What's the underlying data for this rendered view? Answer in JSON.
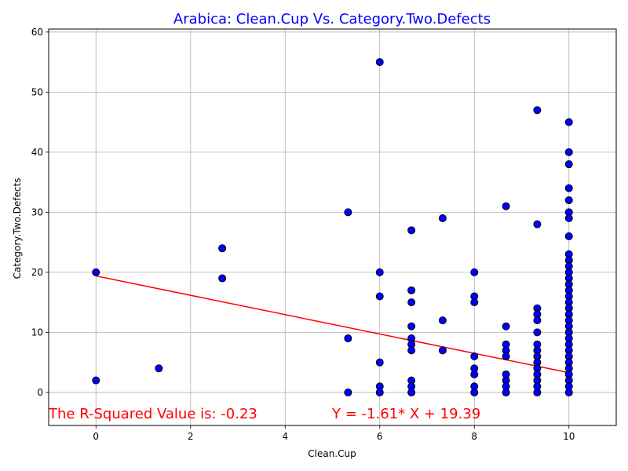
{
  "chart_data": {
    "type": "scatter",
    "title": "Arabica: Clean.Cup Vs. Category.Two.Defects",
    "xlabel": "Clean.Cup",
    "ylabel": "Category.Two.Defects",
    "xlim": [
      -1,
      11
    ],
    "ylim": [
      -5.5,
      60.5
    ],
    "xticks": [
      0,
      2,
      4,
      6,
      8,
      10
    ],
    "yticks": [
      0,
      10,
      20,
      30,
      40,
      50,
      60
    ],
    "grid": true,
    "colors": {
      "title": "#0000ff",
      "point_fill": "#0000ff",
      "point_edge": "#000000",
      "regression_line": "#ff0000",
      "annotation": "#ff0000",
      "grid": "#b0b0b0"
    },
    "series": [
      {
        "points": [
          [
            0,
            20
          ],
          [
            0,
            2
          ],
          [
            1.33,
            4
          ],
          [
            2.67,
            24
          ],
          [
            2.67,
            19
          ],
          [
            5.33,
            30
          ],
          [
            5.33,
            9
          ],
          [
            5.33,
            0
          ],
          [
            6,
            55
          ],
          [
            6,
            20
          ],
          [
            6,
            16
          ],
          [
            6,
            5
          ],
          [
            6,
            1
          ],
          [
            6,
            0
          ],
          [
            6.67,
            27
          ],
          [
            6.67,
            17
          ],
          [
            6.67,
            15
          ],
          [
            6.67,
            11
          ],
          [
            6.67,
            9
          ],
          [
            6.67,
            8
          ],
          [
            6.67,
            7
          ],
          [
            6.67,
            2
          ],
          [
            6.67,
            1
          ],
          [
            6.67,
            0
          ],
          [
            7.33,
            29
          ],
          [
            7.33,
            12
          ],
          [
            7.33,
            7
          ],
          [
            8,
            20
          ],
          [
            8,
            16
          ],
          [
            8,
            15
          ],
          [
            8,
            6
          ],
          [
            8,
            4
          ],
          [
            8,
            3
          ],
          [
            8,
            1
          ],
          [
            8,
            0
          ],
          [
            8.67,
            31
          ],
          [
            8.67,
            11
          ],
          [
            8.67,
            8
          ],
          [
            8.67,
            7
          ],
          [
            8.67,
            6
          ],
          [
            8.67,
            3
          ],
          [
            8.67,
            2
          ],
          [
            8.67,
            1
          ],
          [
            8.67,
            0
          ],
          [
            9.33,
            47
          ],
          [
            9.33,
            28
          ],
          [
            9.33,
            14
          ],
          [
            9.33,
            13
          ],
          [
            9.33,
            12
          ],
          [
            9.33,
            10
          ],
          [
            9.33,
            8
          ],
          [
            9.33,
            7
          ],
          [
            9.33,
            6
          ],
          [
            9.33,
            5
          ],
          [
            9.33,
            4
          ],
          [
            9.33,
            3
          ],
          [
            9.33,
            2
          ],
          [
            9.33,
            1
          ],
          [
            9.33,
            0
          ],
          [
            10,
            45
          ],
          [
            10,
            40
          ],
          [
            10,
            38
          ],
          [
            10,
            34
          ],
          [
            10,
            32
          ],
          [
            10,
            30
          ],
          [
            10,
            29
          ],
          [
            10,
            26
          ],
          [
            10,
            23
          ],
          [
            10,
            22
          ],
          [
            10,
            21
          ],
          [
            10,
            20
          ],
          [
            10,
            19
          ],
          [
            10,
            18
          ],
          [
            10,
            17
          ],
          [
            10,
            16
          ],
          [
            10,
            15
          ],
          [
            10,
            14
          ],
          [
            10,
            13
          ],
          [
            10,
            12
          ],
          [
            10,
            11
          ],
          [
            10,
            10
          ],
          [
            10,
            9
          ],
          [
            10,
            8
          ],
          [
            10,
            7
          ],
          [
            10,
            6
          ],
          [
            10,
            5
          ],
          [
            10,
            4
          ],
          [
            10,
            3
          ],
          [
            10,
            2
          ],
          [
            10,
            1
          ],
          [
            10,
            0
          ]
        ]
      }
    ],
    "regression": {
      "slope": -1.61,
      "intercept": 19.39,
      "x_range": [
        0,
        10
      ]
    },
    "annotations": {
      "r_squared": "The R-Squared Value is: -0.23",
      "equation": "Y = -1.61* X + 19.39"
    }
  }
}
